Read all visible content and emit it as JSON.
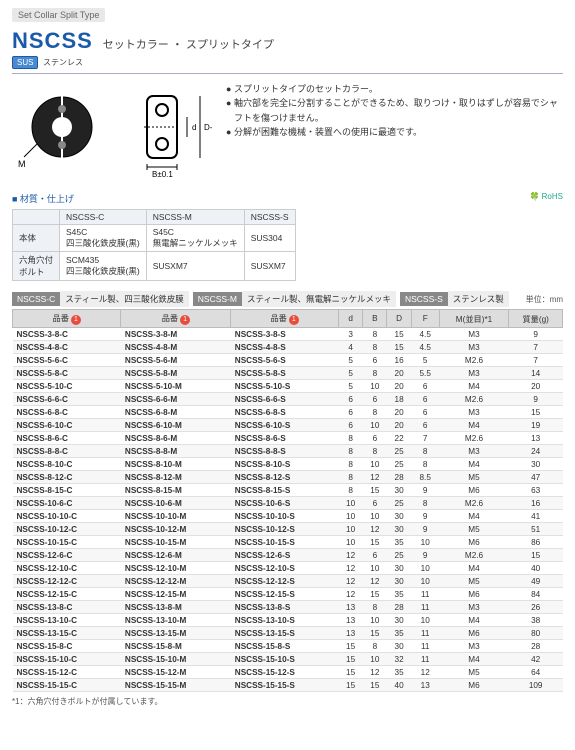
{
  "breadcrumb": "Set Collar Split Type",
  "title_code": "NSCSS",
  "title_jp": "セットカラー ・ スプリットタイプ",
  "sus_badge": "SUS",
  "sus_label": "ステンレス",
  "bullets": [
    "スプリットタイプのセットカラー。",
    "軸穴部を完全に分割することができるため、取りつけ・取りはずしが容易でシャフトを傷つけません。",
    "分解が困難な機械・装置への使用に最適です。"
  ],
  "diagram_labels": {
    "M": "M",
    "B": "B±0.1",
    "d": "d",
    "D": "D-0.1"
  },
  "material_header": "■ 材質・仕上げ",
  "rohs": "🍀 RoHS",
  "material_table": {
    "cols": [
      "",
      "NSCSS-C",
      "NSCSS-M",
      "NSCSS-S"
    ],
    "rows": [
      [
        "本体",
        "S45C\n四三酸化鉄皮膜(黒)",
        "S45C\n無電解ニッケルメッキ",
        "SUS304"
      ],
      [
        "六角穴付\nボルト",
        "SCM435\n四三酸化鉄皮膜(黒)",
        "SUSXM7",
        "SUSXM7"
      ]
    ]
  },
  "series": [
    {
      "chip": "NSCSS-C",
      "desc": "スティール製、四三酸化鉄皮膜"
    },
    {
      "chip": "NSCSS-M",
      "desc": "スティール製、無電解ニッケルメッキ"
    },
    {
      "chip": "NSCSS-S",
      "desc": "ステンレス製"
    }
  ],
  "unit_label": "単位：mm",
  "table_headers": [
    "品番",
    "品番",
    "品番",
    "d",
    "B",
    "D",
    "F",
    "M(並目)*1",
    "質量(g)"
  ],
  "badge_num": "1",
  "rows": [
    [
      "NSCSS-3-8-C",
      "NSCSS-3-8-M",
      "NSCSS-3-8-S",
      "3",
      "8",
      "15",
      "4.5",
      "M3",
      "9"
    ],
    [
      "NSCSS-4-8-C",
      "NSCSS-4-8-M",
      "NSCSS-4-8-S",
      "4",
      "8",
      "15",
      "4.5",
      "M3",
      "7"
    ],
    [
      "NSCSS-5-6-C",
      "NSCSS-5-6-M",
      "NSCSS-5-6-S",
      "5",
      "6",
      "16",
      "5",
      "M2.6",
      "7"
    ],
    [
      "NSCSS-5-8-C",
      "NSCSS-5-8-M",
      "NSCSS-5-8-S",
      "5",
      "8",
      "20",
      "5.5",
      "M3",
      "14"
    ],
    [
      "NSCSS-5-10-C",
      "NSCSS-5-10-M",
      "NSCSS-5-10-S",
      "5",
      "10",
      "20",
      "6",
      "M4",
      "20"
    ],
    [
      "NSCSS-6-6-C",
      "NSCSS-6-6-M",
      "NSCSS-6-6-S",
      "6",
      "6",
      "18",
      "6",
      "M2.6",
      "9"
    ],
    [
      "NSCSS-6-8-C",
      "NSCSS-6-8-M",
      "NSCSS-6-8-S",
      "6",
      "8",
      "20",
      "6",
      "M3",
      "15"
    ],
    [
      "NSCSS-6-10-C",
      "NSCSS-6-10-M",
      "NSCSS-6-10-S",
      "6",
      "10",
      "20",
      "6",
      "M4",
      "19"
    ],
    [
      "NSCSS-8-6-C",
      "NSCSS-8-6-M",
      "NSCSS-8-6-S",
      "8",
      "6",
      "22",
      "7",
      "M2.6",
      "13"
    ],
    [
      "NSCSS-8-8-C",
      "NSCSS-8-8-M",
      "NSCSS-8-8-S",
      "8",
      "8",
      "25",
      "8",
      "M3",
      "24"
    ],
    [
      "NSCSS-8-10-C",
      "NSCSS-8-10-M",
      "NSCSS-8-10-S",
      "8",
      "10",
      "25",
      "8",
      "M4",
      "30"
    ],
    [
      "NSCSS-8-12-C",
      "NSCSS-8-12-M",
      "NSCSS-8-12-S",
      "8",
      "12",
      "28",
      "8.5",
      "M5",
      "47"
    ],
    [
      "NSCSS-8-15-C",
      "NSCSS-8-15-M",
      "NSCSS-8-15-S",
      "8",
      "15",
      "30",
      "9",
      "M6",
      "63"
    ],
    [
      "NSCSS-10-6-C",
      "NSCSS-10-6-M",
      "NSCSS-10-6-S",
      "10",
      "6",
      "25",
      "8",
      "M2.6",
      "16"
    ],
    [
      "NSCSS-10-10-C",
      "NSCSS-10-10-M",
      "NSCSS-10-10-S",
      "10",
      "10",
      "30",
      "9",
      "M4",
      "41"
    ],
    [
      "NSCSS-10-12-C",
      "NSCSS-10-12-M",
      "NSCSS-10-12-S",
      "10",
      "12",
      "30",
      "9",
      "M5",
      "51"
    ],
    [
      "NSCSS-10-15-C",
      "NSCSS-10-15-M",
      "NSCSS-10-15-S",
      "10",
      "15",
      "35",
      "10",
      "M6",
      "86"
    ],
    [
      "NSCSS-12-6-C",
      "NSCSS-12-6-M",
      "NSCSS-12-6-S",
      "12",
      "6",
      "25",
      "9",
      "M2.6",
      "15"
    ],
    [
      "NSCSS-12-10-C",
      "NSCSS-12-10-M",
      "NSCSS-12-10-S",
      "12",
      "10",
      "30",
      "10",
      "M4",
      "40"
    ],
    [
      "NSCSS-12-12-C",
      "NSCSS-12-12-M",
      "NSCSS-12-12-S",
      "12",
      "12",
      "30",
      "10",
      "M5",
      "49"
    ],
    [
      "NSCSS-12-15-C",
      "NSCSS-12-15-M",
      "NSCSS-12-15-S",
      "12",
      "15",
      "35",
      "11",
      "M6",
      "84"
    ],
    [
      "NSCSS-13-8-C",
      "NSCSS-13-8-M",
      "NSCSS-13-8-S",
      "13",
      "8",
      "28",
      "11",
      "M3",
      "26"
    ],
    [
      "NSCSS-13-10-C",
      "NSCSS-13-10-M",
      "NSCSS-13-10-S",
      "13",
      "10",
      "30",
      "10",
      "M4",
      "38"
    ],
    [
      "NSCSS-13-15-C",
      "NSCSS-13-15-M",
      "NSCSS-13-15-S",
      "13",
      "15",
      "35",
      "11",
      "M6",
      "80"
    ],
    [
      "NSCSS-15-8-C",
      "NSCSS-15-8-M",
      "NSCSS-15-8-S",
      "15",
      "8",
      "30",
      "11",
      "M3",
      "28"
    ],
    [
      "NSCSS-15-10-C",
      "NSCSS-15-10-M",
      "NSCSS-15-10-S",
      "15",
      "10",
      "32",
      "11",
      "M4",
      "42"
    ],
    [
      "NSCSS-15-12-C",
      "NSCSS-15-12-M",
      "NSCSS-15-12-S",
      "15",
      "12",
      "35",
      "12",
      "M5",
      "64"
    ],
    [
      "NSCSS-15-15-C",
      "NSCSS-15-15-M",
      "NSCSS-15-15-S",
      "15",
      "15",
      "40",
      "13",
      "M6",
      "109"
    ]
  ],
  "footnote": "*1：六角穴付きボルトが付属しています。"
}
